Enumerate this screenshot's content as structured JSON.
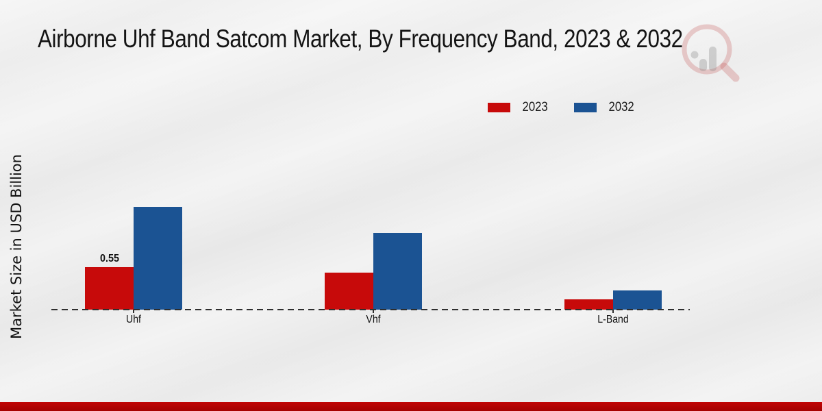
{
  "watermark_icon": "magnifier-bar-chart-logo",
  "colors": {
    "series_2023": "#c70a0a",
    "series_2032": "#1b5393",
    "footer_stripe": "#b30404",
    "baseline": "#2e2e2e"
  },
  "chart_data": {
    "type": "bar",
    "title": "Airborne Uhf Band Satcom Market, By Frequency Band, 2023 & 2032",
    "xlabel": "",
    "ylabel": "Market Size in USD Billion",
    "categories": [
      "Uhf",
      "Vhf",
      "L-Band"
    ],
    "series": [
      {
        "name": "2023",
        "color": "#c70a0a",
        "values": [
          0.55,
          0.48,
          0.13
        ]
      },
      {
        "name": "2032",
        "color": "#1b5393",
        "values": [
          1.33,
          0.99,
          0.25
        ]
      }
    ],
    "bar_labels": [
      {
        "category": "Uhf",
        "series": "2023",
        "text": "0.55"
      }
    ],
    "ylim": [
      0,
      1.6
    ],
    "grid": false,
    "legend_position": "top-right",
    "baseline_style": "dashed"
  }
}
